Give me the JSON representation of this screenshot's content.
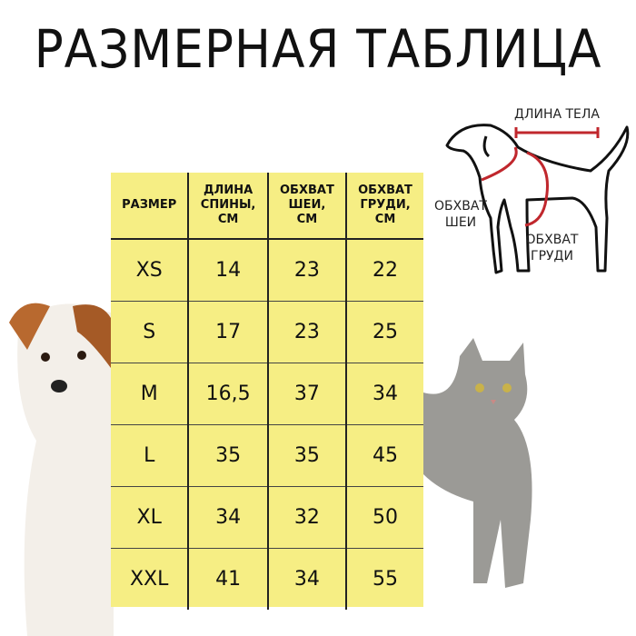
{
  "title": "РАЗМЕРНАЯ ТАБЛИЦА",
  "table": {
    "headers": [
      "РАЗМЕР",
      "ДЛИНА СПИНЫ, СМ",
      "ОБХВАТ ШЕИ, СМ",
      "ОБХВАТ ГРУДИ, СМ"
    ],
    "header_lines": [
      [
        "РАЗМЕР"
      ],
      [
        "ДЛИНА",
        "СПИНЫ,",
        "СМ"
      ],
      [
        "ОБХВАТ",
        "ШЕИ,",
        "СМ"
      ],
      [
        "ОБХВАТ",
        "ГРУДИ,",
        "СМ"
      ]
    ],
    "rows": [
      [
        "XS",
        "14",
        "23",
        "22"
      ],
      [
        "S",
        "17",
        "23",
        "25"
      ],
      [
        "M",
        "16,5",
        "37",
        "34"
      ],
      [
        "L",
        "35",
        "35",
        "45"
      ],
      [
        "XL",
        "34",
        "32",
        "50"
      ],
      [
        "XXL",
        "41",
        "34",
        "55"
      ]
    ]
  },
  "diagram": {
    "body_length": "ДЛИНА ТЕЛА",
    "neck_line1": "ОБХВАТ",
    "neck_line2": "ШЕИ",
    "chest_line1": "ОБХВАТ",
    "chest_line2": "ГРУДИ"
  },
  "colors": {
    "table_bg": "#f6ee84",
    "measure_red": "#c0272d"
  }
}
